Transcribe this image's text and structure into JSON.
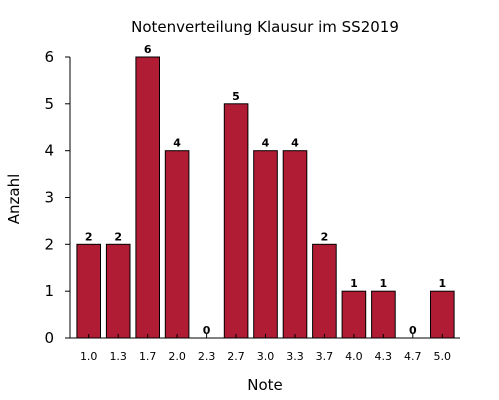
{
  "chart_data": {
    "type": "bar",
    "title": "Notenverteilung Klausur im SS2019",
    "xlabel": "Note",
    "ylabel": "Anzahl",
    "categories": [
      "1.0",
      "1.3",
      "1.7",
      "2.0",
      "2.3",
      "2.7",
      "3.0",
      "3.3",
      "3.7",
      "4.0",
      "4.3",
      "4.7",
      "5.0"
    ],
    "values": [
      2,
      2,
      6,
      4,
      0,
      5,
      4,
      4,
      2,
      1,
      1,
      0,
      1
    ],
    "ylim": [
      0,
      6
    ],
    "yticks": [
      0,
      1,
      2,
      3,
      4,
      5,
      6
    ],
    "grid": false,
    "legend": "none",
    "bar_color": "#b01c33"
  }
}
